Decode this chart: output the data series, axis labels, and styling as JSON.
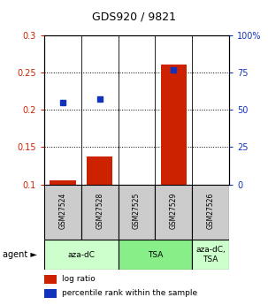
{
  "title": "GDS920 / 9821",
  "samples": [
    "GSM27524",
    "GSM27528",
    "GSM27525",
    "GSM27529",
    "GSM27526"
  ],
  "log_ratio": [
    0.105,
    0.137,
    0.1,
    0.26,
    0.1
  ],
  "percentile_rank_pct": [
    55.0,
    57.0,
    null,
    77.0,
    null
  ],
  "ylim_left": [
    0.1,
    0.3
  ],
  "ylim_right": [
    0,
    100
  ],
  "yticks_left": [
    0.1,
    0.15,
    0.2,
    0.25,
    0.3
  ],
  "yticks_right": [
    0,
    25,
    50,
    75,
    100
  ],
  "ytick_labels_left": [
    "0.1",
    "0.15",
    "0.2",
    "0.25",
    "0.3"
  ],
  "ytick_labels_right": [
    "0",
    "25",
    "50",
    "75",
    "100%"
  ],
  "bar_color": "#cc2200",
  "dot_color": "#1133bb",
  "agent_groups": [
    {
      "label": "aza-dC",
      "span": [
        0,
        2
      ],
      "color": "#ccffcc"
    },
    {
      "label": "TSA",
      "span": [
        2,
        4
      ],
      "color": "#88ee88"
    },
    {
      "label": "aza-dC,\nTSA",
      "span": [
        4,
        5
      ],
      "color": "#ccffcc"
    }
  ],
  "grid_color": "#000000",
  "background_color": "#ffffff",
  "sample_box_color": "#cccccc",
  "legend_items": [
    {
      "color": "#cc2200",
      "label": "log ratio"
    },
    {
      "color": "#1133bb",
      "label": "percentile rank within the sample"
    }
  ]
}
